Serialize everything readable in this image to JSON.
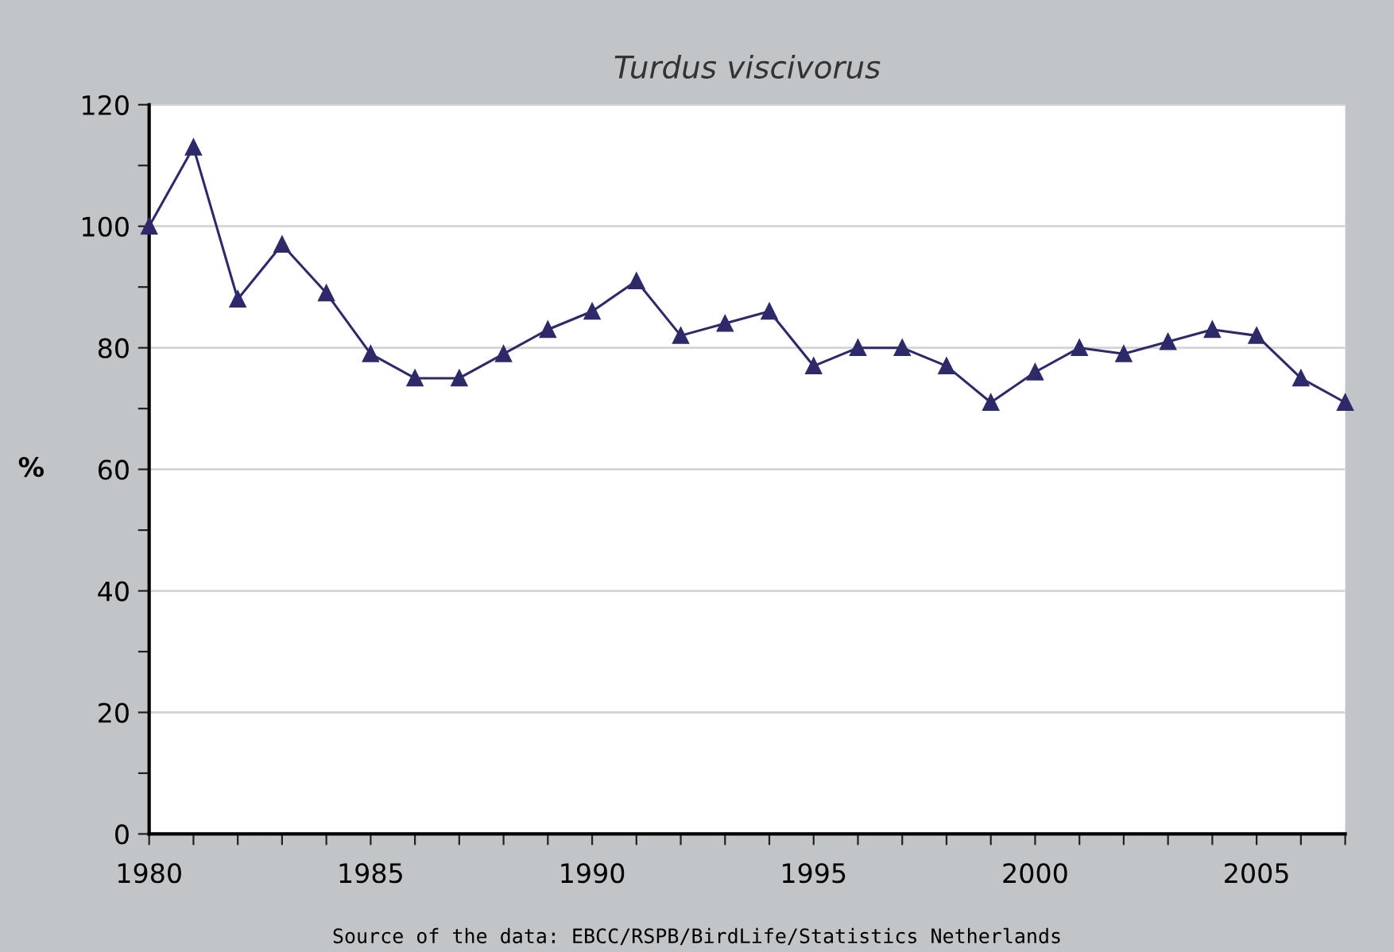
{
  "chart_data": {
    "type": "line",
    "title": "Turdus viscivorus",
    "ylabel": "%",
    "x": [
      1980,
      1981,
      1982,
      1983,
      1984,
      1985,
      1986,
      1987,
      1988,
      1989,
      1990,
      1991,
      1992,
      1993,
      1994,
      1995,
      1996,
      1997,
      1998,
      1999,
      2000,
      2001,
      2002,
      2003,
      2004,
      2005,
      2006,
      2007
    ],
    "series": [
      {
        "color": "#2e2a6a",
        "values": [
          100,
          113,
          88,
          97,
          89,
          79,
          75,
          75,
          79,
          83,
          86,
          91,
          82,
          84,
          86,
          77,
          80,
          80,
          77,
          71,
          76,
          80,
          79,
          81,
          83,
          82,
          75,
          71
        ]
      }
    ],
    "xlim": [
      1980,
      2007
    ],
    "xticks": [
      1980,
      {
        "value": 1981,
        "label": null
      },
      {
        "value": 1982,
        "label": null
      },
      {
        "value": 1983,
        "label": null
      },
      {
        "value": 1984,
        "label": null
      },
      1985,
      {
        "value": 1986,
        "label": null
      },
      {
        "value": 1987,
        "label": null
      },
      {
        "value": 1988,
        "label": null
      },
      {
        "value": 1989,
        "label": null
      },
      1990,
      {
        "value": 1991,
        "label": null
      },
      {
        "value": 1992,
        "label": null
      },
      {
        "value": 1993,
        "label": null
      },
      {
        "value": 1994,
        "label": null
      },
      1995,
      {
        "value": 1996,
        "label": null
      },
      {
        "value": 1997,
        "label": null
      },
      {
        "value": 1998,
        "label": null
      },
      {
        "value": 1999,
        "label": null
      },
      2000,
      {
        "value": 2001,
        "label": null
      },
      {
        "value": 2002,
        "label": null
      },
      {
        "value": 2003,
        "label": null
      },
      {
        "value": 2004,
        "label": null
      },
      2005,
      {
        "value": 2006,
        "label": null
      },
      {
        "value": 2007,
        "label": null
      }
    ],
    "ylim": [
      0,
      120
    ],
    "yticks": [
      0,
      {
        "value": 10,
        "label": null
      },
      20,
      {
        "value": 30,
        "label": null
      },
      40,
      {
        "value": 50,
        "label": null
      },
      60,
      {
        "value": 70,
        "label": null
      },
      80,
      {
        "value": 90,
        "label": null
      },
      100,
      {
        "value": 110,
        "label": null
      },
      120
    ],
    "grid": "y",
    "marker": "triangle",
    "line_style": "solid",
    "annotations": [
      "Source of the data: EBCC/RSPB/BirdLife/Statistics Netherlands"
    ]
  }
}
